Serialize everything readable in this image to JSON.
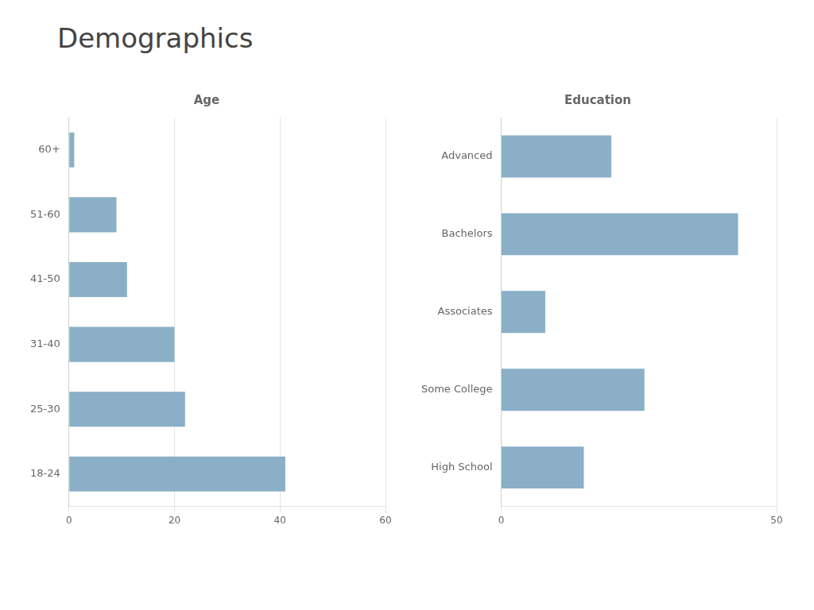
{
  "title": "Demographics",
  "chart_data": [
    {
      "type": "bar",
      "orientation": "horizontal",
      "title": "Age",
      "categories": [
        "18-24",
        "25-30",
        "31-40",
        "41-50",
        "51-60",
        "60+"
      ],
      "values": [
        41,
        22,
        20,
        11,
        9,
        1
      ],
      "color": "#8AAFC7",
      "xlim": [
        0,
        60
      ],
      "xticks": [
        0,
        20,
        40,
        60
      ],
      "grid": true
    },
    {
      "type": "bar",
      "orientation": "horizontal",
      "title": "Education",
      "categories": [
        "High School",
        "Some College",
        "Associates",
        "Bachelors",
        "Advanced"
      ],
      "values": [
        15,
        26,
        8,
        43,
        20
      ],
      "color": "#8AAFC7",
      "xlim": [
        0,
        50
      ],
      "xticks": [
        0,
        50
      ],
      "grid": true
    }
  ]
}
